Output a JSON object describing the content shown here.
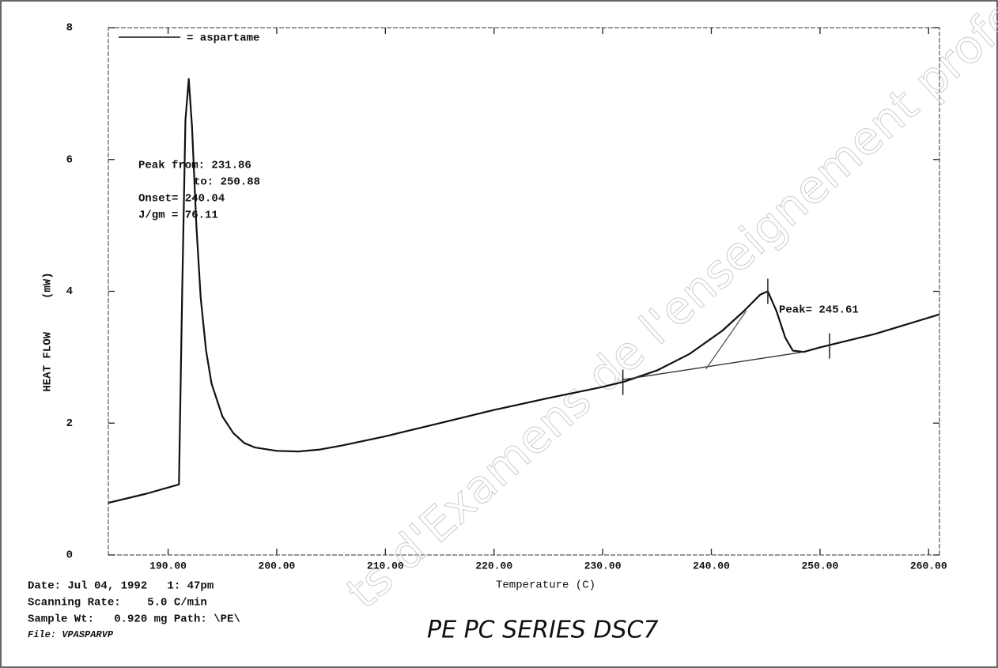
{
  "chart_data": {
    "type": "line",
    "y_label": "HEAT FLOW     (mW)",
    "x_label": "Temperature (C)",
    "xlim": [
      184.5,
      261
    ],
    "ylim": [
      0,
      8
    ],
    "xticks": [
      {
        "value": 190,
        "label": "190.00"
      },
      {
        "value": 200,
        "label": "200.00"
      },
      {
        "value": 210,
        "label": "210.00"
      },
      {
        "value": 220,
        "label": "220.00"
      },
      {
        "value": 230,
        "label": "230.00"
      },
      {
        "value": 240,
        "label": "240.00"
      },
      {
        "value": 250,
        "label": "250.00"
      },
      {
        "value": 260,
        "label": "260.00"
      }
    ],
    "yticks": [
      0,
      2,
      4,
      6,
      8
    ],
    "legend": "upper left",
    "series": [
      {
        "name": "= aspartame",
        "color": "#111111",
        "x": [
          184.5,
          188,
          191.0,
          191.3,
          191.6,
          191.9,
          192.2,
          192.6,
          193,
          193.5,
          194,
          195,
          196,
          197,
          198,
          200,
          202,
          204,
          206,
          210,
          215,
          220,
          225,
          230,
          232,
          235,
          238,
          241,
          243,
          244.5,
          245.2,
          246,
          246.8,
          247.5,
          248.5,
          250,
          255,
          261
        ],
        "values": [
          0.79,
          0.93,
          1.07,
          4.0,
          6.6,
          7.22,
          6.5,
          5.0,
          3.9,
          3.1,
          2.6,
          2.1,
          1.85,
          1.7,
          1.63,
          1.58,
          1.57,
          1.6,
          1.66,
          1.8,
          2.0,
          2.2,
          2.38,
          2.55,
          2.63,
          2.8,
          3.05,
          3.4,
          3.7,
          3.95,
          4.0,
          3.7,
          3.3,
          3.1,
          3.08,
          3.15,
          3.35,
          3.65
        ]
      },
      {
        "color": "#333333",
        "x": [
          231.86,
          248.5
        ],
        "values": [
          2.66,
          3.08
        ]
      },
      {
        "color": "#555555",
        "x": [
          239.5,
          243.2
        ],
        "values": [
          2.82,
          3.7
        ]
      }
    ],
    "markers": [
      {
        "x": 231.86,
        "y": 2.62
      },
      {
        "x": 245.2,
        "y": 4.0
      },
      {
        "x": 250.88,
        "y": 3.17
      }
    ],
    "annotations": [
      "Peak from: 231.86",
      "to: 250.88",
      "Onset= 240.04",
      "J/gm = 76.11"
    ],
    "peak_label": "Peak= 245.61",
    "footer": [
      "Date: Jul 04, 1992   1: 47pm",
      "Scanning Rate:    5.0 C/min",
      "Sample Wt:   0.920 mg Path: \\PE\\",
      "File: VPASPARVP"
    ],
    "instrument": "PE PC SERIES DSC7",
    "watermark": "ts d'Examens de l'enseignement professio"
  }
}
